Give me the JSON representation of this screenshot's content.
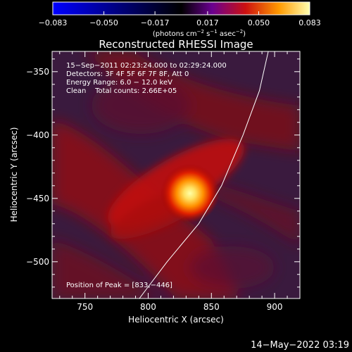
{
  "chart_data": {
    "type": "heatmap",
    "title": "Reconstructed RHESSI Image",
    "xlabel": "Heliocentric X (arcsec)",
    "ylabel": "Heliocentric Y (arcsec)",
    "xlim": [
      724,
      920
    ],
    "ylim": [
      -529,
      -334
    ],
    "x_ticks": [
      750,
      800,
      850,
      900
    ],
    "x_tick_labels": [
      "750",
      "800",
      "850",
      "900"
    ],
    "y_ticks": [
      -350,
      -400,
      -450,
      -500
    ],
    "y_tick_labels": [
      "−350",
      "−400",
      "−450",
      "−500"
    ],
    "colorbar": {
      "range": [
        -0.083,
        0.083
      ],
      "ticks": [
        -0.083,
        -0.05,
        -0.017,
        0.017,
        0.05,
        0.083
      ],
      "tick_labels": [
        "−0.083",
        "−0.050",
        "−0.017",
        "0.017",
        "0.050",
        "0.083"
      ],
      "unit_parts": [
        "(photons cm",
        "−2",
        " s",
        "−1",
        " asec",
        "−2",
        ")"
      ]
    },
    "annotations": [
      "15−Sep−2011 02:23:24.000 to 02:29:24.000",
      "Detectors: 3F 4F 5F 6F 7F 8F, Att 0",
      "Energy Range: 6.0 − 12.0 keV",
      "Clean    Total counts: 2.66E+05"
    ],
    "peak_label": "Position of Peak = [833,−446]",
    "peak": {
      "x": 833,
      "y": -446,
      "value": 0.083
    },
    "limb_points": [
      [
        793,
        -529
      ],
      [
        815,
        -500
      ],
      [
        840,
        -470
      ],
      [
        858,
        -440
      ],
      [
        875,
        -400
      ],
      [
        888,
        -365
      ],
      [
        895,
        -334
      ]
    ],
    "timestamp": "14−May−2022 03:19"
  }
}
